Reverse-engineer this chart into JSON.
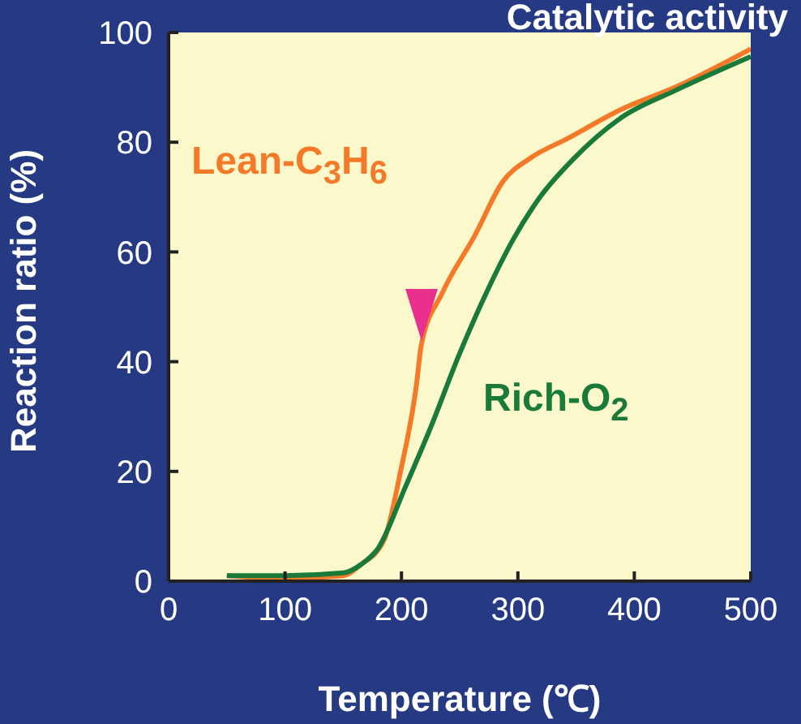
{
  "chart_data": {
    "type": "line",
    "title": "Catalytic activity",
    "xlabel": "Temperature (℃)",
    "ylabel": "Reaction ratio (%)",
    "xlim": [
      0,
      500
    ],
    "xticks": [
      0,
      100,
      200,
      300,
      400,
      500
    ],
    "ylim": [
      0,
      100
    ],
    "yticks": [
      0,
      20,
      40,
      60,
      80,
      100
    ],
    "grid": false,
    "legend": false,
    "marker": "none",
    "line_style": "solid",
    "series": [
      {
        "name": "Lean-C$_{3}$H$_{6}$",
        "color": "#f47a2a",
        "x": [
          50,
          100,
          150,
          165,
          185,
          199,
          213,
          217,
          235,
          263,
          287,
          310,
          343,
          389,
          435,
          500
        ],
        "values": [
          1,
          0.5,
          1,
          3,
          7.5,
          19.8,
          36,
          43,
          52.5,
          63,
          72.8,
          77,
          80.7,
          86,
          90,
          97
        ]
      },
      {
        "name": "Rich-O$_{2}$",
        "color": "#1a7a3a",
        "x": [
          50,
          100,
          150,
          165,
          180,
          203,
          226,
          249,
          273,
          296,
          319,
          347,
          389,
          435,
          500
        ],
        "values": [
          1,
          1,
          1.5,
          3,
          6,
          17,
          28.5,
          41,
          52.6,
          62.3,
          70,
          76.8,
          84.5,
          89.4,
          95.6
        ]
      }
    ]
  }
}
